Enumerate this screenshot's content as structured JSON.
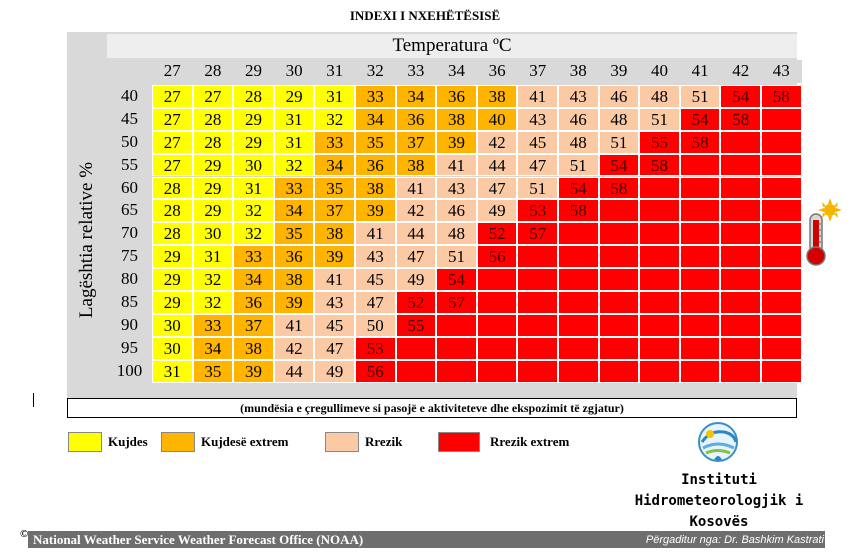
{
  "title": "INDEXI I NXEHËTËSISË",
  "chart_data": {
    "type": "heatmap",
    "xlabel": "Temperatura ºC",
    "ylabel": "Lagështia relative %",
    "x": [
      27,
      28,
      29,
      30,
      31,
      32,
      33,
      34,
      36,
      37,
      38,
      39,
      40,
      41,
      42,
      43
    ],
    "y": [
      40,
      45,
      50,
      55,
      60,
      65,
      70,
      75,
      80,
      85,
      90,
      95,
      100
    ],
    "values": [
      [
        27,
        27,
        28,
        29,
        31,
        33,
        34,
        36,
        38,
        41,
        43,
        46,
        48,
        51,
        54,
        58
      ],
      [
        27,
        28,
        29,
        31,
        32,
        34,
        36,
        38,
        40,
        43,
        46,
        48,
        51,
        54,
        58,
        null
      ],
      [
        27,
        28,
        29,
        31,
        33,
        35,
        37,
        39,
        42,
        45,
        48,
        51,
        55,
        58,
        null,
        null
      ],
      [
        27,
        29,
        30,
        32,
        34,
        36,
        38,
        41,
        44,
        47,
        51,
        54,
        58,
        null,
        null,
        null
      ],
      [
        28,
        29,
        31,
        33,
        35,
        38,
        41,
        43,
        47,
        51,
        54,
        58,
        null,
        null,
        null,
        null
      ],
      [
        28,
        29,
        32,
        34,
        37,
        39,
        42,
        46,
        49,
        53,
        58,
        null,
        null,
        null,
        null,
        null
      ],
      [
        28,
        30,
        32,
        35,
        38,
        41,
        44,
        48,
        52,
        57,
        null,
        null,
        null,
        null,
        null,
        null
      ],
      [
        29,
        31,
        33,
        36,
        39,
        43,
        47,
        51,
        56,
        null,
        null,
        null,
        null,
        null,
        null,
        null
      ],
      [
        29,
        32,
        34,
        38,
        41,
        45,
        49,
        54,
        null,
        null,
        null,
        null,
        null,
        null,
        null,
        null
      ],
      [
        29,
        32,
        36,
        39,
        43,
        47,
        52,
        57,
        null,
        null,
        null,
        null,
        null,
        null,
        null,
        null
      ],
      [
        30,
        33,
        37,
        41,
        45,
        50,
        55,
        null,
        null,
        null,
        null,
        null,
        null,
        null,
        null,
        null
      ],
      [
        30,
        34,
        38,
        42,
        47,
        53,
        null,
        null,
        null,
        null,
        null,
        null,
        null,
        null,
        null,
        null
      ],
      [
        31,
        35,
        39,
        44,
        49,
        56,
        null,
        null,
        null,
        null,
        null,
        null,
        null,
        null,
        null,
        null
      ]
    ],
    "categories": [
      {
        "name": "Kujdes",
        "color": "#ffff00",
        "min": 27,
        "max": 32
      },
      {
        "name": "Kujdesë extrem",
        "color": "#ffb400",
        "min": 33,
        "max": 40
      },
      {
        "name": "Rrezik",
        "color": "#fbc9a4",
        "min": 41,
        "max": 51
      },
      {
        "name": "Rrezik extrem",
        "color": "#ff0000",
        "min": 52,
        "max": 100
      }
    ],
    "note": "(mundësia e çregullimeve si pasojë e aktiviteteve dhe ekspozimit të zgjatur)"
  },
  "institute": {
    "line1": "Instituti",
    "line2": "Hidrometeorologjik i",
    "line3": "Kosovës"
  },
  "footer": {
    "copyright": "©",
    "source": "National Weather Service Weather Forecast Office (NOAA)",
    "author": "Përgaditur nga: Dr. Bashkim Kastrati"
  },
  "icons": {
    "thermometer": "thermometer-sun-icon",
    "logo": "institute-logo-icon"
  }
}
